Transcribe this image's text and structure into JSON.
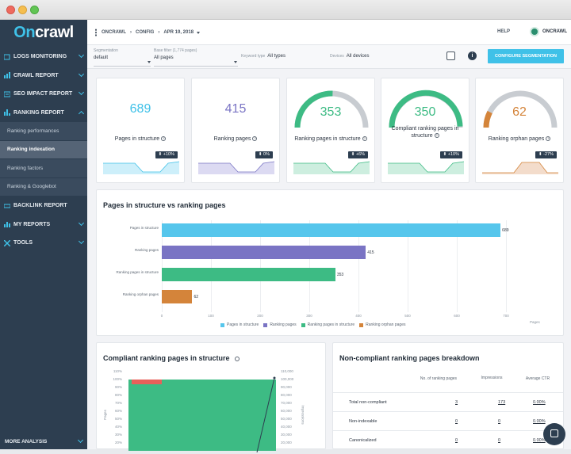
{
  "brand": {
    "logo_left": "On",
    "logo_right": "crawl"
  },
  "sidebar": {
    "items": [
      {
        "label": "LOGS MONITORING",
        "icon": "logs-icon"
      },
      {
        "label": "CRAWL REPORT",
        "icon": "crawl-icon"
      },
      {
        "label": "SEO IMPACT REPORT",
        "icon": "seo-impact-icon"
      },
      {
        "label": "RANKING REPORT",
        "icon": "ranking-icon"
      }
    ],
    "sub_items": [
      "Ranking performances",
      "Ranking indexation",
      "Ranking factors",
      "Ranking & Googlebot"
    ],
    "items_after": [
      {
        "label": "BACKLINK REPORT",
        "icon": "backlink-icon"
      },
      {
        "label": "MY REPORTS",
        "icon": "reports-icon"
      },
      {
        "label": "TOOLS",
        "icon": "tools-icon"
      }
    ],
    "more": "MORE ANALYSIS"
  },
  "topbar": {
    "crumb1": "ONCRAWL",
    "crumb2": "CONFIG",
    "crumb3": "APR 19, 2018",
    "help": "HELP",
    "account": "ONCRAWL"
  },
  "filters": {
    "segmentation_label": "Segmentation",
    "segmentation_value": "default",
    "base_label": "Base filter (1,774 pages)",
    "base_value": "All pages",
    "keyword_label": "Keyword type",
    "keyword_value": "All types",
    "devices_label": "Devices",
    "devices_value": "All devices",
    "configure": "CONFIGURE SEGMENTATION"
  },
  "kpis": [
    {
      "value": "689",
      "label": "Pages in structure",
      "badge": "+10%",
      "color": "#3fc1e8",
      "gauge": null,
      "spark": "#cdeffa"
    },
    {
      "value": "415",
      "label": "Ranking pages",
      "badge": "0%",
      "color": "#7a74c4",
      "gauge": null,
      "spark": "#dcdaf2"
    },
    {
      "value": "353",
      "label": "Ranking pages in structure",
      "badge": "+6%",
      "color": "#3dbb84",
      "gauge": 0.51,
      "spark": "#cdeedf"
    },
    {
      "value": "350",
      "label": "Compliant ranking pages in structure",
      "badge": "+10%",
      "color": "#3dbb84",
      "gauge": 0.99,
      "spark": "#cdeedf"
    },
    {
      "value": "62",
      "label": "Ranking orphan pages",
      "badge": "-27%",
      "color": "#d4843a",
      "gauge": 0.15,
      "spark": "#f3dccb"
    }
  ],
  "bar_section": {
    "title": "Pages in structure vs ranking pages"
  },
  "chart_data": {
    "type": "bar",
    "orientation": "horizontal",
    "categories": [
      "Pages in structure",
      "Ranking pages",
      "Ranking pages in structure",
      "Ranking orphan pages"
    ],
    "values": [
      689,
      415,
      353,
      62
    ],
    "colors": [
      "#56c6ec",
      "#7a74c4",
      "#3dbb84",
      "#d4843a"
    ],
    "xlim": [
      0,
      700
    ],
    "xticks": [
      0,
      100,
      200,
      300,
      400,
      500,
      600,
      700
    ],
    "xlabel": "Pages",
    "legend": [
      "Pages in structure",
      "Ranking pages",
      "Ranking pages in structure",
      "Ranking orphan pages"
    ]
  },
  "compliant": {
    "title": "Compliant ranking pages in structure",
    "left_ticks": [
      "110%",
      "100%",
      "90%",
      "80%",
      "70%",
      "60%",
      "50%",
      "40%",
      "30%",
      "20%"
    ],
    "right_ticks": [
      "110,000",
      "100,000",
      "90,000",
      "80,000",
      "70,000",
      "60,000",
      "50,000",
      "40,000",
      "30,000",
      "20,000"
    ],
    "left_axis_label": "Pages",
    "right_axis_label": "Impressions"
  },
  "breakdown": {
    "title": "Non-compliant ranking pages breakdown",
    "headers": [
      "No. of ranking pages",
      "Impressions",
      "Average CTR"
    ],
    "rows": [
      {
        "label": "Total non-compliant",
        "pages": "3",
        "impressions": "173",
        "ctr": "0.00%"
      },
      {
        "label": "Non-indexable",
        "pages": "0",
        "impressions": "0",
        "ctr": "0.00%"
      },
      {
        "label": "Canonicalized",
        "pages": "0",
        "impressions": "0",
        "ctr": "0.00%"
      }
    ]
  }
}
